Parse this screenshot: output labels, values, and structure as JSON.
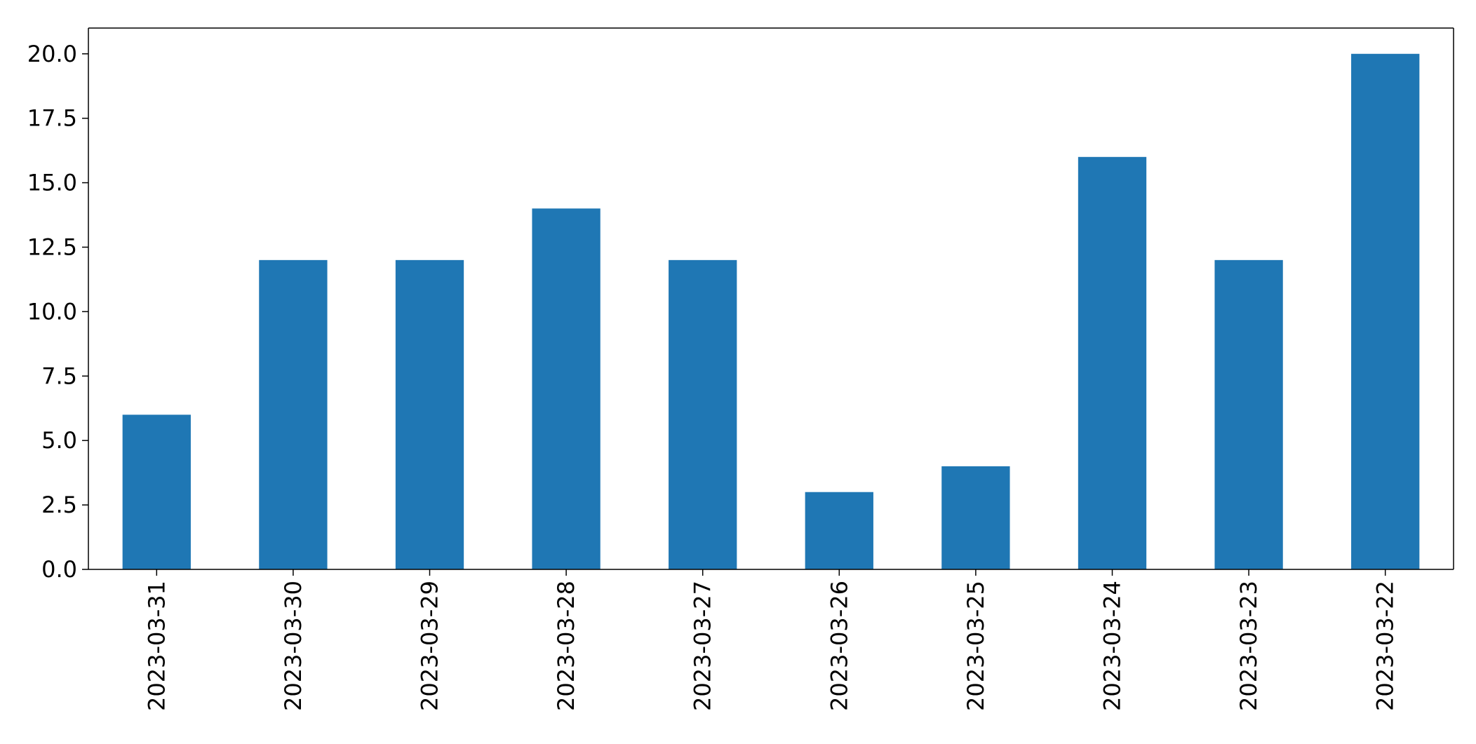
{
  "chart_data": {
    "type": "bar",
    "title": "",
    "xlabel": "",
    "ylabel": "",
    "categories": [
      "2023-03-31",
      "2023-03-30",
      "2023-03-29",
      "2023-03-28",
      "2023-03-27",
      "2023-03-26",
      "2023-03-25",
      "2023-03-24",
      "2023-03-23",
      "2023-03-22"
    ],
    "values": [
      6,
      12,
      12,
      14,
      12,
      3,
      4,
      16,
      12,
      20
    ],
    "ylim": [
      0,
      21
    ],
    "yticks": [
      0,
      2.5,
      5,
      7.5,
      10,
      12.5,
      15,
      17.5,
      20
    ],
    "ytick_labels": [
      "0.0",
      "2.5",
      "5.0",
      "7.5",
      "10.0",
      "12.5",
      "15.0",
      "17.5",
      "20.0"
    ],
    "xtick_rotation": "vertical",
    "grid": false,
    "legend": "none",
    "colors": {
      "bar": "#1f77b4",
      "axis": "#000000",
      "background": "#ffffff"
    }
  }
}
